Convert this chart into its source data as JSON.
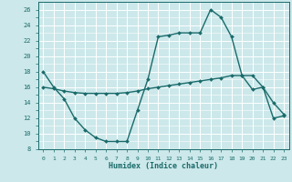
{
  "xlabel": "Humidex (Indice chaleur)",
  "background_color": "#cce8ea",
  "grid_color": "#ffffff",
  "line_color": "#1a6b6b",
  "xlim": [
    -0.5,
    23.5
  ],
  "ylim": [
    8,
    27
  ],
  "yticks": [
    8,
    10,
    12,
    14,
    16,
    18,
    20,
    22,
    24,
    26
  ],
  "xticks": [
    0,
    1,
    2,
    3,
    4,
    5,
    6,
    7,
    8,
    9,
    10,
    11,
    12,
    13,
    14,
    15,
    16,
    17,
    18,
    19,
    20,
    21,
    22,
    23
  ],
  "series1_x": [
    0,
    1,
    2,
    3,
    4,
    5,
    6,
    7,
    8,
    9,
    10,
    11,
    12,
    13,
    14,
    15,
    16,
    17,
    18,
    19,
    20,
    21,
    22,
    23
  ],
  "series1_y": [
    18,
    16,
    14.5,
    12,
    10.5,
    9.5,
    9,
    9,
    9,
    13,
    17,
    22.5,
    22.7,
    23,
    23,
    23,
    26,
    25,
    22.5,
    17.5,
    15.7,
    16,
    14,
    12.5
  ],
  "series2_x": [
    0,
    1,
    2,
    3,
    4,
    5,
    6,
    7,
    8,
    9,
    10,
    11,
    12,
    13,
    14,
    15,
    16,
    17,
    18,
    19,
    20,
    21,
    22,
    23
  ],
  "series2_y": [
    16,
    15.8,
    15.5,
    15.3,
    15.2,
    15.2,
    15.2,
    15.2,
    15.3,
    15.5,
    15.8,
    16.0,
    16.2,
    16.4,
    16.6,
    16.8,
    17.0,
    17.2,
    17.5,
    17.5,
    17.5,
    16.0,
    12.0,
    12.3
  ],
  "marker": "D",
  "markersize": 2.0,
  "linewidth": 1.0
}
